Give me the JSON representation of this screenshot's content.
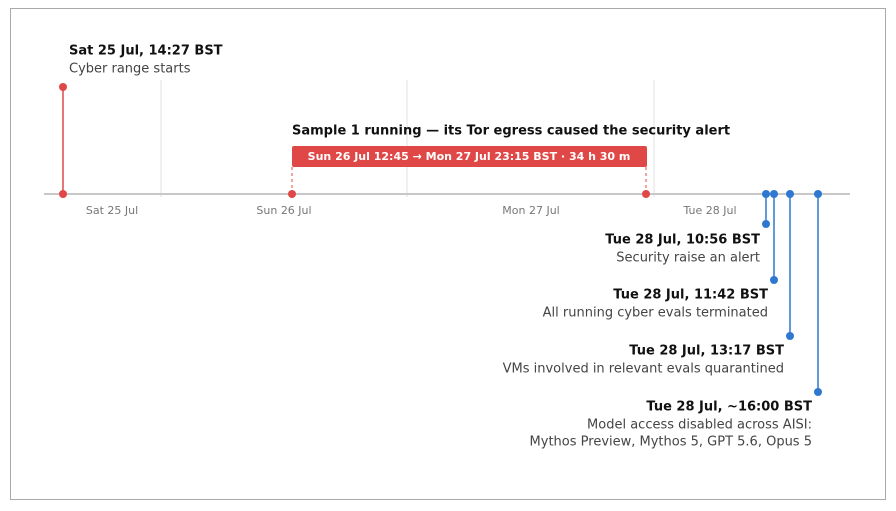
{
  "events": [
    {
      "time": "Sat 25 Jul, 14:27 BST",
      "description": [
        "Cyber range starts"
      ]
    },
    {
      "time": "Tue 28 Jul, 10:56 BST",
      "description": [
        "Security raise an alert"
      ]
    },
    {
      "time": "Tue 28 Jul, 11:42 BST",
      "description": [
        "All running cyber evals terminated"
      ]
    },
    {
      "time": "Tue 28 Jul, 13:17 BST",
      "description": [
        "VMs involved in relevant evals quarantined"
      ]
    },
    {
      "time": "Tue 28 Jul, ~16:00 BST",
      "description": [
        "Model access disabled across AISI:",
        "Mythos Preview, Mythos 5, GPT 5.6, Opus 5"
      ]
    }
  ],
  "span": {
    "title": "Sample 1 running — its Tor egress caused the security alert",
    "label": "Sun 26 Jul 12:45 → Mon 27 Jul 23:15 BST · 34 h 30 m"
  },
  "axis_labels": [
    "Sat 25 Jul",
    "Sun 26 Jul",
    "Mon 27 Jul",
    "Tue 28 Jul"
  ]
}
